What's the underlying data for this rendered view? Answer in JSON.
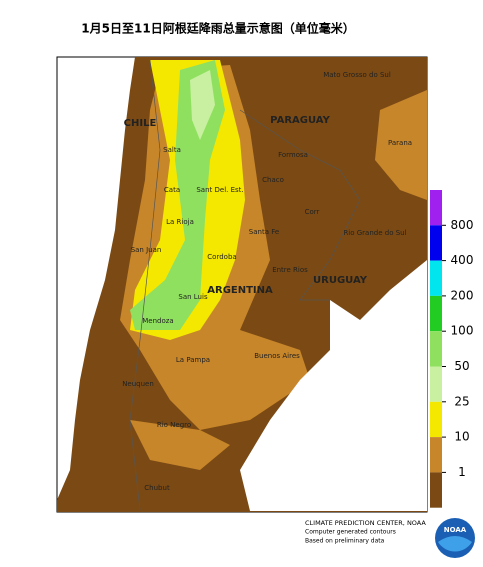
{
  "title": "1月5日至11日阿根廷降雨总量示意图（单位毫米）",
  "places": [
    "CHILE",
    "PARAGUAY",
    "Mato Grosso do Sul",
    "Salta",
    "Formosa",
    "Chaco",
    "Cata",
    "Sant Del. Est.",
    "Corr",
    "Parana",
    "Rio Grande do Sul",
    "La Rioja",
    "Santa Fe",
    "San Juan",
    "Cordoba",
    "Entre Rios",
    "URUGUAY",
    "ARGENTINA",
    "San Luis",
    "Mendoza",
    "La Pampa",
    "Buenos Aires",
    "Neuquen",
    "Rio Negro",
    "Chubut"
  ],
  "legend": {
    "ticks": [
      800,
      400,
      200,
      100,
      50,
      25,
      10,
      1
    ],
    "colors": [
      "#a020f0",
      "#0000ee",
      "#00e5ee",
      "#22cc22",
      "#90e060",
      "#c8f0a0",
      "#f5e800",
      "#c8862a",
      "#7b4a14"
    ]
  },
  "credits": [
    "CLIMATE PREDICTION CENTER, NOAA",
    "Computer generated contours",
    "Based on preliminary data"
  ],
  "logo": "NOAA"
}
